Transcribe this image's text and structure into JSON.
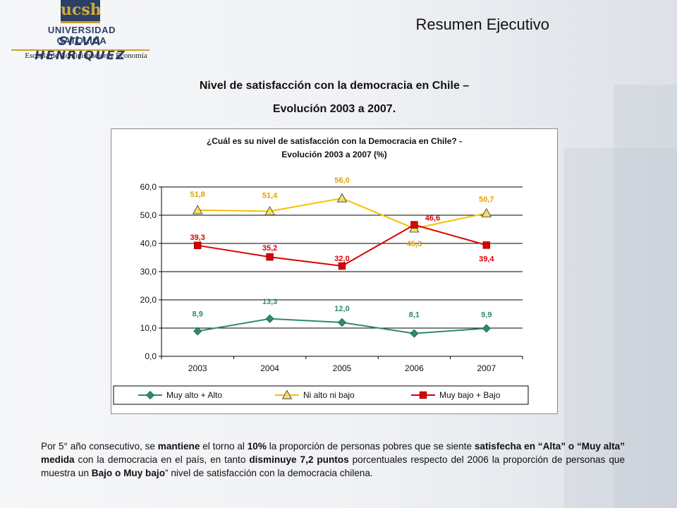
{
  "logo": {
    "mark_text": "ucsh",
    "university_line": "UNIVERSIDAD CATOLICA",
    "name_line": "SILVA HENRIQUEZ",
    "school_line": "Escuela de Administración y Economía"
  },
  "slide": {
    "title": "Resumen Ejecutivo",
    "chart_title_line1": "Nivel de satisfacción con la democracia en Chile –",
    "chart_title_line2": "Evolución 2003 a 2007."
  },
  "colors": {
    "green": "#2e8b6b",
    "yellow": "#f5c000",
    "yellow_label": "#e6a000",
    "red": "#dd0000",
    "gridline": "#000000"
  },
  "chart_data": {
    "type": "line",
    "title": "¿Cuál es su nivel de satisfacción con la Democracia en Chile? -",
    "subtitle": "Evolución 2003 a 2007 (%)",
    "categories": [
      "2003",
      "2004",
      "2005",
      "2006",
      "2007"
    ],
    "ylim": [
      0,
      60
    ],
    "yticks": [
      "0,0",
      "10,0",
      "20,0",
      "30,0",
      "40,0",
      "50,0",
      "60,0"
    ],
    "grid": true,
    "legend_position": "bottom",
    "series": [
      {
        "name": "Muy alto + Alto",
        "marker": "diamond",
        "values": [
          8.9,
          13.3,
          12.0,
          8.1,
          9.9
        ],
        "labels": [
          "8,9",
          "13,3",
          "12,0",
          "8,1",
          "9,9"
        ]
      },
      {
        "name": "Ni alto ni bajo",
        "marker": "triangle",
        "values": [
          51.8,
          51.4,
          56.0,
          45.3,
          50.7
        ],
        "labels": [
          "51,8",
          "51,4",
          "56,0",
          "45,3",
          "50,7"
        ]
      },
      {
        "name": "Muy bajo + Bajo",
        "marker": "square",
        "values": [
          39.3,
          35.2,
          32.0,
          46.6,
          39.4
        ],
        "labels": [
          "39,3",
          "35,2",
          "32,0",
          "46,6",
          "39,4"
        ]
      }
    ]
  },
  "body": {
    "p1": "Por 5° año consecutivo, se ",
    "b1": "mantiene",
    "p2": " el torno al ",
    "b2": "10%",
    "p3": " la proporción de personas pobres que se siente ",
    "b3": "satisfecha en “Alta” o “Muy alta” medida",
    "p4": " con la democracia en el país, en tanto ",
    "b4": "disminuye 7,2 puntos",
    "p5": " porcentuales respecto del 2006 la proporción de personas que muestra un ",
    "b5": "Bajo o Muy bajo",
    "p6": "” nivel de satisfacción con la democracia chilena."
  }
}
